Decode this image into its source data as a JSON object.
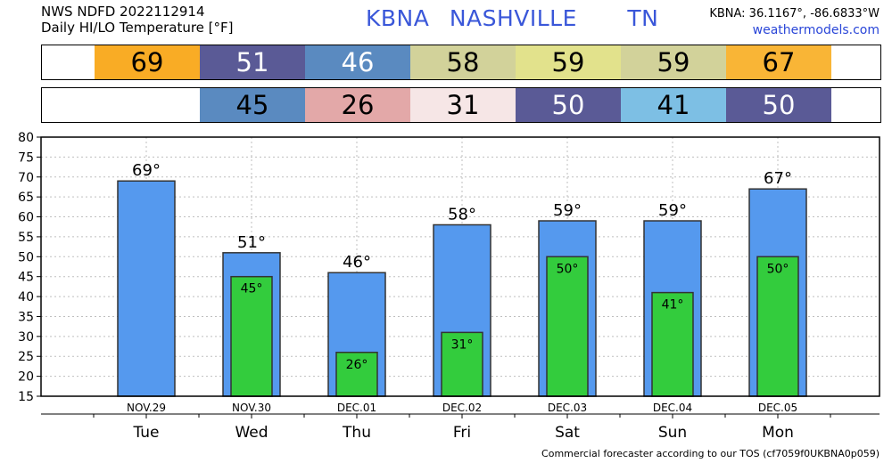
{
  "header": {
    "line1": "NWS NDFD 2022112914",
    "line2": "Daily HI/LO Temperature [°F]",
    "station_code": "KBNA",
    "station_name": "NASHVILLE",
    "state": "TN",
    "coords": "KBNA: 36.1167°, -86.6833°W",
    "site": "weathermodels.com"
  },
  "hi_strip": [
    {
      "value": "69",
      "color": "#f9ac25",
      "text_color": "#000000"
    },
    {
      "value": "51",
      "color": "#5a5a96",
      "text_color": "#ffffff"
    },
    {
      "value": "46",
      "color": "#5a8ac0",
      "text_color": "#ffffff"
    },
    {
      "value": "58",
      "color": "#d2d29a",
      "text_color": "#000000"
    },
    {
      "value": "59",
      "color": "#e2e28c",
      "text_color": "#000000"
    },
    {
      "value": "59",
      "color": "#d2d29a",
      "text_color": "#000000"
    },
    {
      "value": "67",
      "color": "#f9b536",
      "text_color": "#000000"
    }
  ],
  "lo_strip": [
    {
      "value": "",
      "color": "#ffffff",
      "text_color": "#000000"
    },
    {
      "value": "45",
      "color": "#5a8ac0",
      "text_color": "#000000"
    },
    {
      "value": "26",
      "color": "#e3a8a8",
      "text_color": "#000000"
    },
    {
      "value": "31",
      "color": "#f6e6e6",
      "text_color": "#000000"
    },
    {
      "value": "50",
      "color": "#5a5a96",
      "text_color": "#ffffff"
    },
    {
      "value": "41",
      "color": "#7dbfe4",
      "text_color": "#000000"
    },
    {
      "value": "50",
      "color": "#5a5a96",
      "text_color": "#ffffff"
    }
  ],
  "chart_data": {
    "type": "bar",
    "categories": [
      "NOV.29",
      "NOV.30",
      "DEC.01",
      "DEC.02",
      "DEC.03",
      "DEC.04",
      "DEC.05"
    ],
    "weekdays": [
      "Tue",
      "Wed",
      "Thu",
      "Fri",
      "Sat",
      "Sun",
      "Mon"
    ],
    "series": [
      {
        "values": [
          69,
          51,
          46,
          58,
          59,
          59,
          67
        ],
        "color": "#5599ee"
      },
      {
        "values": [
          null,
          45,
          26,
          31,
          50,
          41,
          50
        ],
        "color": "#33cc3d"
      }
    ],
    "hi_labels": [
      "69°",
      "51°",
      "46°",
      "58°",
      "59°",
      "59°",
      "67°"
    ],
    "lo_labels": [
      "",
      "45°",
      "26°",
      "31°",
      "50°",
      "41°",
      "50°"
    ],
    "yticks": [
      "15",
      "20",
      "25",
      "30",
      "35",
      "40",
      "45",
      "50",
      "55",
      "60",
      "65",
      "70",
      "75",
      "80"
    ],
    "ylim": [
      15,
      80
    ],
    "grid": true
  },
  "footer": "Commercial forecaster according to our TOS (cf7059f0UKBNA0p059)"
}
